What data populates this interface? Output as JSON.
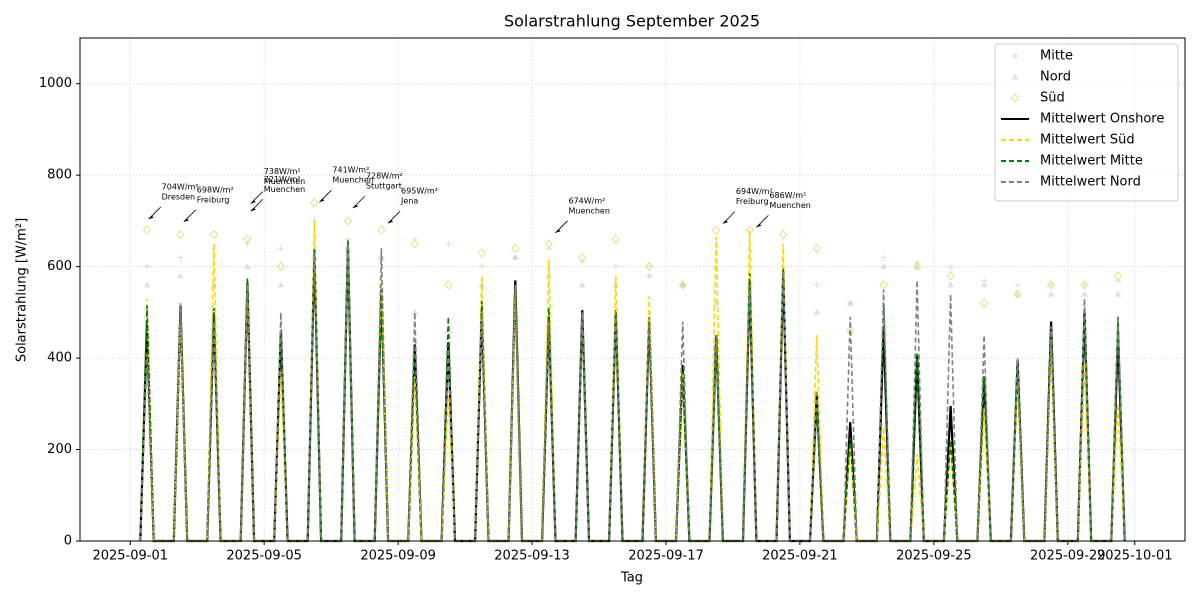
{
  "chart_data": {
    "type": "line",
    "title": "Solarstrahlung September 2025",
    "xlabel": "Tag",
    "ylabel": "Solarstrahlung [W/m²]",
    "xlim": [
      -1.5,
      31.5
    ],
    "ylim": [
      0,
      1100
    ],
    "xticks": [
      {
        "value": 0,
        "label": "2025-09-01"
      },
      {
        "value": 4,
        "label": "2025-09-05"
      },
      {
        "value": 8,
        "label": "2025-09-09"
      },
      {
        "value": 12,
        "label": "2025-09-13"
      },
      {
        "value": 16,
        "label": "2025-09-17"
      },
      {
        "value": 20,
        "label": "2025-09-21"
      },
      {
        "value": 24,
        "label": "2025-09-25"
      },
      {
        "value": 28,
        "label": "2025-09-29"
      },
      {
        "value": 30,
        "label": "2025-10-01"
      }
    ],
    "yticks": [
      0,
      200,
      400,
      600,
      800,
      1000
    ],
    "grid": true,
    "legend": "upper right",
    "x": [
      0.3,
      0.5,
      0.7,
      1.3,
      1.5,
      1.7,
      2.3,
      2.5,
      2.7,
      3.3,
      3.5,
      3.7,
      4.3,
      4.5,
      4.7,
      5.3,
      5.5,
      5.7,
      6.3,
      6.5,
      6.7,
      7.3,
      7.5,
      7.7,
      8.3,
      8.5,
      8.7,
      9.3,
      9.5,
      9.7,
      10.3,
      10.5,
      10.7,
      11.3,
      11.5,
      11.7,
      12.3,
      12.5,
      12.7,
      13.3,
      13.5,
      13.7,
      14.3,
      14.5,
      14.7,
      15.3,
      15.5,
      15.7,
      16.3,
      16.5,
      16.7,
      17.3,
      17.5,
      17.7,
      18.3,
      18.5,
      18.7,
      19.3,
      19.5,
      19.7,
      20.3,
      20.5,
      20.7,
      21.3,
      21.5,
      21.7,
      22.3,
      22.5,
      22.7,
      23.3,
      23.5,
      23.7,
      24.3,
      24.5,
      24.7,
      25.3,
      25.5,
      25.7,
      26.3,
      26.5,
      26.7,
      27.3,
      27.5,
      27.7,
      28.3,
      28.5,
      28.7,
      29.3,
      29.5,
      29.7
    ],
    "series": [
      {
        "name": "Mitte",
        "kind": "scatter",
        "marker": "plus",
        "color": "#90ee90",
        "x": [
          0.5,
          1.5,
          2.5,
          3.5,
          4.5,
          5.5,
          6.5,
          7.5,
          8.5,
          9.5,
          10.5,
          11.5,
          12.5,
          13.5,
          14.5,
          15.5,
          16.5,
          17.5,
          18.5,
          19.5,
          20.5,
          21.5,
          22.5,
          23.5,
          24.5,
          25.5,
          26.5,
          27.5,
          28.5,
          29.5
        ],
        "values": [
          600,
          620,
          640,
          650,
          640,
          700,
          660,
          620,
          660,
          650,
          600,
          620,
          640,
          610,
          600,
          600,
          560,
          600,
          600,
          600,
          560,
          520,
          620,
          610,
          600,
          570,
          560,
          560,
          560,
          570
        ]
      },
      {
        "name": "Nord",
        "kind": "scatter",
        "marker": "triangle",
        "color": "#a9a9a9",
        "x": [
          0.5,
          1.5,
          2.5,
          3.5,
          4.5,
          5.5,
          6.5,
          7.5,
          8.5,
          9.5,
          10.5,
          11.5,
          12.5,
          13.5,
          14.5,
          15.5,
          16.5,
          17.5,
          18.5,
          19.5,
          20.5,
          21.5,
          22.5,
          23.5,
          24.5,
          25.5,
          26.5,
          27.5,
          28.5,
          29.5
        ],
        "values": [
          560,
          580,
          560,
          600,
          560,
          620,
          640,
          620,
          500,
          460,
          560,
          620,
          580,
          560,
          560,
          580,
          560,
          520,
          560,
          560,
          500,
          520,
          600,
          600,
          560,
          560,
          540,
          540,
          540,
          540
        ]
      },
      {
        "name": "Süd",
        "kind": "scatter",
        "marker": "diamond",
        "color": "#e6d56a",
        "x": [
          0.5,
          1.5,
          2.5,
          3.5,
          4.5,
          5.5,
          6.5,
          7.5,
          8.5,
          9.5,
          10.5,
          11.5,
          12.5,
          13.5,
          14.5,
          15.5,
          16.5,
          17.5,
          18.5,
          19.5,
          20.5,
          21.5,
          22.5,
          23.5,
          24.5,
          25.5,
          26.5,
          27.5,
          28.5,
          29.5
        ],
        "values": [
          680,
          670,
          670,
          660,
          600,
          740,
          700,
          680,
          650,
          560,
          630,
          640,
          650,
          620,
          660,
          600,
          560,
          680,
          680,
          670,
          640,
          460,
          560,
          600,
          580,
          520,
          540,
          560,
          560,
          580
        ]
      },
      {
        "name": "Mittelwert Onshore",
        "kind": "line",
        "dashed": false,
        "color": "#000000",
        "values": [
          0,
          475,
          0,
          0,
          515,
          0,
          0,
          500,
          0,
          0,
          565,
          0,
          0,
          460,
          0,
          0,
          635,
          0,
          0,
          645,
          0,
          0,
          550,
          0,
          0,
          430,
          0,
          0,
          435,
          0,
          0,
          510,
          0,
          0,
          570,
          0,
          0,
          490,
          0,
          0,
          505,
          0,
          0,
          505,
          0,
          0,
          490,
          0,
          0,
          385,
          0,
          0,
          450,
          0,
          0,
          565,
          0,
          0,
          590,
          0,
          0,
          320,
          0,
          0,
          260,
          0,
          0,
          470,
          0,
          0,
          405,
          0,
          0,
          295,
          0,
          0,
          360,
          0,
          0,
          395,
          0,
          0,
          480,
          0,
          0,
          500,
          0,
          0,
          455,
          0
        ]
      },
      {
        "name": "Mittelwert Süd",
        "kind": "line",
        "dashed": true,
        "color": "#ffd700",
        "values": [
          0,
          530,
          0,
          0,
          500,
          0,
          0,
          650,
          0,
          0,
          560,
          0,
          0,
          370,
          0,
          0,
          700,
          0,
          0,
          650,
          0,
          0,
          575,
          0,
          0,
          360,
          0,
          0,
          320,
          0,
          0,
          580,
          0,
          0,
          555,
          0,
          0,
          615,
          0,
          0,
          500,
          0,
          0,
          580,
          0,
          0,
          535,
          0,
          0,
          370,
          0,
          0,
          665,
          0,
          0,
          680,
          0,
          0,
          650,
          0,
          0,
          450,
          0,
          0,
          210,
          0,
          0,
          250,
          0,
          0,
          190,
          0,
          0,
          220,
          0,
          0,
          290,
          0,
          0,
          350,
          0,
          0,
          430,
          0,
          0,
          390,
          0,
          0,
          300,
          0
        ]
      },
      {
        "name": "Mittelwert Mitte",
        "kind": "line",
        "dashed": true,
        "color": "#008000",
        "values": [
          0,
          515,
          0,
          0,
          510,
          0,
          0,
          510,
          0,
          0,
          575,
          0,
          0,
          450,
          0,
          0,
          640,
          0,
          0,
          660,
          0,
          0,
          540,
          0,
          0,
          420,
          0,
          0,
          490,
          0,
          0,
          525,
          0,
          0,
          560,
          0,
          0,
          510,
          0,
          0,
          500,
          0,
          0,
          500,
          0,
          0,
          480,
          0,
          0,
          370,
          0,
          0,
          440,
          0,
          0,
          585,
          0,
          0,
          595,
          0,
          0,
          290,
          0,
          0,
          225,
          0,
          0,
          520,
          0,
          0,
          410,
          0,
          0,
          220,
          0,
          0,
          360,
          0,
          0,
          380,
          0,
          0,
          470,
          0,
          0,
          480,
          0,
          0,
          490,
          0
        ]
      },
      {
        "name": "Mittelwert Nord",
        "kind": "line",
        "dashed": true,
        "color": "#808080",
        "values": [
          0,
          410,
          0,
          0,
          520,
          0,
          0,
          480,
          0,
          0,
          560,
          0,
          0,
          500,
          0,
          0,
          630,
          0,
          0,
          650,
          0,
          0,
          640,
          0,
          0,
          500,
          0,
          0,
          420,
          0,
          0,
          500,
          0,
          0,
          560,
          0,
          0,
          480,
          0,
          0,
          500,
          0,
          0,
          500,
          0,
          0,
          490,
          0,
          0,
          480,
          0,
          0,
          450,
          0,
          0,
          560,
          0,
          0,
          590,
          0,
          0,
          330,
          0,
          0,
          490,
          0,
          0,
          550,
          0,
          0,
          570,
          0,
          0,
          540,
          0,
          0,
          450,
          0,
          0,
          400,
          0,
          0,
          470,
          0,
          0,
          530,
          0,
          0,
          490,
          0
        ]
      }
    ],
    "annotations": [
      {
        "x": 0.55,
        "y": 704,
        "text": "704W/m²",
        "place": "Dresden"
      },
      {
        "x": 1.6,
        "y": 698,
        "text": "698W/m²",
        "place": "Freiburg"
      },
      {
        "x": 3.6,
        "y": 738,
        "text": "738W/m²",
        "place": "Muenchen"
      },
      {
        "x": 3.6,
        "y": 721,
        "text": "721W/m²",
        "place": "Muenchen"
      },
      {
        "x": 5.65,
        "y": 741,
        "text": "741W/m²",
        "place": "Muenchen"
      },
      {
        "x": 6.65,
        "y": 728,
        "text": "728W/m²",
        "place": "Stuttgart"
      },
      {
        "x": 7.7,
        "y": 695,
        "text": "695W/m²",
        "place": "Jena"
      },
      {
        "x": 12.7,
        "y": 674,
        "text": "674W/m²",
        "place": "Muenchen"
      },
      {
        "x": 17.7,
        "y": 694,
        "text": "694W/m²",
        "place": "Freiburg"
      },
      {
        "x": 18.7,
        "y": 686,
        "text": "686W/m²",
        "place": "Muenchen"
      }
    ]
  }
}
